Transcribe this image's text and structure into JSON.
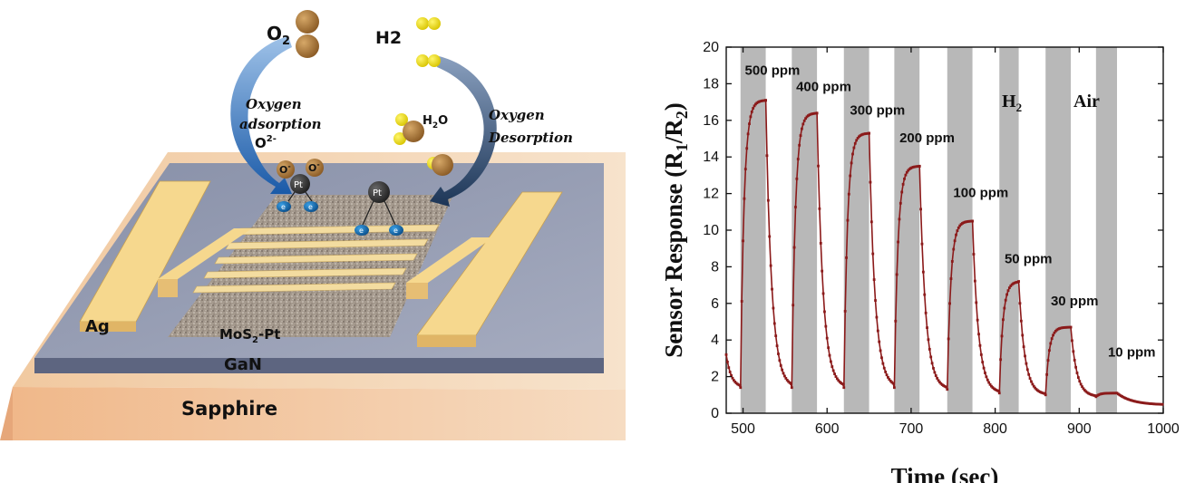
{
  "diagram": {
    "label_o2": "O",
    "label_o2_sub": "2",
    "label_h2": "H2",
    "label_h2o": "H",
    "label_h2o_sub": "2",
    "label_h2o_end": "O",
    "label_adsorption_1": "Oxygen",
    "label_adsorption_2": "adsorption",
    "label_o2minus": "O",
    "label_o2minus_sup": "2-",
    "label_desorption_1": "Oxygen",
    "label_desorption_2": "Desorption",
    "label_pt": "Pt",
    "label_electron": "e",
    "label_ominus": "O",
    "label_minus": "-",
    "label_ag": "Ag",
    "label_mos2pt": "MoS",
    "label_mos2pt_sub": "2",
    "label_mos2pt_end": "-Pt",
    "label_gan": "GaN",
    "label_sapphire": "Sapphire"
  },
  "chart_data": {
    "type": "line",
    "xlabel": "Time (sec)",
    "ylabel_main": "Sensor Response (R",
    "ylabel_sub1": "1",
    "ylabel_mid": "/R",
    "ylabel_sub2": "2",
    "ylabel_end": ")",
    "xlim": [
      480,
      1000
    ],
    "ylim": [
      0,
      20
    ],
    "xticks": [
      500,
      600,
      700,
      800,
      900,
      1000
    ],
    "yticks": [
      0,
      2,
      4,
      6,
      8,
      10,
      12,
      14,
      16,
      18,
      20
    ],
    "legend_gas": "H",
    "legend_gas_sub": "2",
    "legend_air": "Air",
    "gas_on_intervals": [
      [
        497,
        527
      ],
      [
        558,
        588
      ],
      [
        620,
        650
      ],
      [
        680,
        710
      ],
      [
        743,
        773
      ],
      [
        805,
        828
      ],
      [
        860,
        890
      ],
      [
        920,
        945
      ]
    ],
    "pulses": [
      {
        "label": "500 ppm",
        "start": 497,
        "end": 527,
        "peak": 17.1
      },
      {
        "label": "400 ppm",
        "start": 558,
        "end": 588,
        "peak": 16.4
      },
      {
        "label": "300 ppm",
        "start": 620,
        "end": 650,
        "peak": 15.3
      },
      {
        "label": "200 ppm",
        "start": 680,
        "end": 710,
        "peak": 13.5
      },
      {
        "label": "100 ppm",
        "start": 743,
        "end": 773,
        "peak": 10.5
      },
      {
        "label": "50 ppm",
        "start": 805,
        "end": 828,
        "peak": 7.2
      },
      {
        "label": "30 ppm",
        "start": 860,
        "end": 890,
        "peak": 4.7
      },
      {
        "label": "10 ppm",
        "start": 920,
        "end": 945,
        "peak": 1.1
      }
    ],
    "series_color": "#8b1a1a",
    "band_color": "#b8b8b8"
  }
}
